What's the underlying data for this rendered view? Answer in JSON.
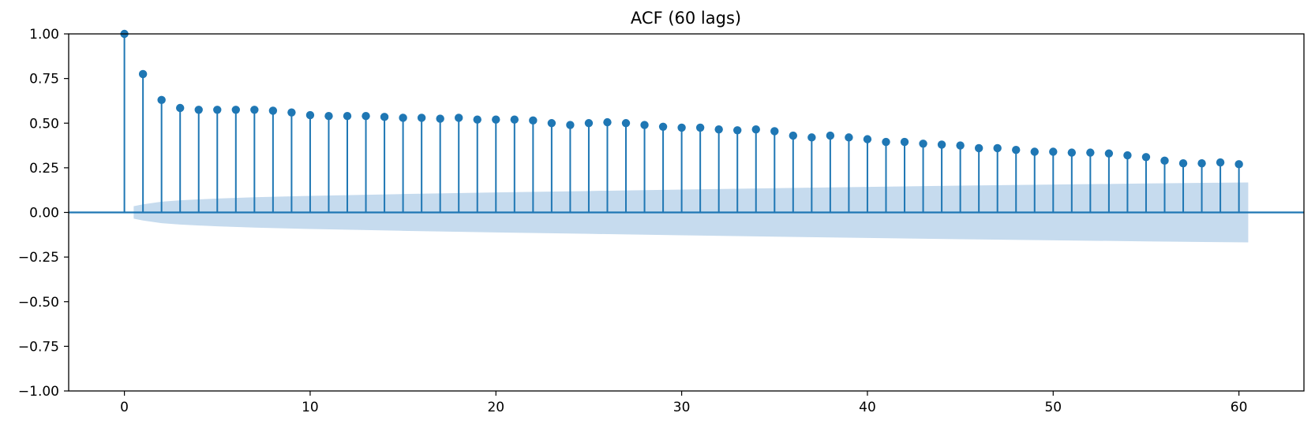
{
  "chart_data": {
    "type": "stem",
    "title": "ACF (60 lags)",
    "xlabel": "",
    "ylabel": "",
    "xlim": [
      -3,
      63.5
    ],
    "ylim": [
      -1.0,
      1.0
    ],
    "x_ticks": [
      0,
      10,
      20,
      30,
      40,
      50,
      60
    ],
    "x_tick_labels": [
      "0",
      "10",
      "20",
      "30",
      "40",
      "50",
      "60"
    ],
    "y_ticks": [
      1.0,
      0.75,
      0.5,
      0.25,
      0.0,
      -0.25,
      -0.5,
      -0.75,
      -1.0
    ],
    "y_tick_labels": [
      "1.00",
      "0.75",
      "0.50",
      "0.25",
      "0.00",
      "−0.25",
      "−0.50",
      "−0.75",
      "−1.00"
    ],
    "grid": false,
    "lags": [
      0,
      1,
      2,
      3,
      4,
      5,
      6,
      7,
      8,
      9,
      10,
      11,
      12,
      13,
      14,
      15,
      16,
      17,
      18,
      19,
      20,
      21,
      22,
      23,
      24,
      25,
      26,
      27,
      28,
      29,
      30,
      31,
      32,
      33,
      34,
      35,
      36,
      37,
      38,
      39,
      40,
      41,
      42,
      43,
      44,
      45,
      46,
      47,
      48,
      49,
      50,
      51,
      52,
      53,
      54,
      55,
      56,
      57,
      58,
      59,
      60
    ],
    "acf": [
      1.0,
      0.775,
      0.63,
      0.585,
      0.575,
      0.575,
      0.575,
      0.575,
      0.57,
      0.56,
      0.545,
      0.54,
      0.54,
      0.54,
      0.535,
      0.53,
      0.53,
      0.525,
      0.53,
      0.52,
      0.52,
      0.52,
      0.515,
      0.5,
      0.49,
      0.5,
      0.505,
      0.5,
      0.49,
      0.48,
      0.475,
      0.475,
      0.465,
      0.46,
      0.465,
      0.455,
      0.43,
      0.42,
      0.43,
      0.42,
      0.41,
      0.395,
      0.395,
      0.385,
      0.38,
      0.375,
      0.36,
      0.36,
      0.35,
      0.34,
      0.34,
      0.335,
      0.335,
      0.33,
      0.32,
      0.31,
      0.29,
      0.275,
      0.275,
      0.28,
      0.27
    ],
    "confidence_band": {
      "x_start": 0.5,
      "x_end": 60.5,
      "x": [
        0.5,
        1,
        2,
        3,
        5,
        7,
        10,
        15,
        20,
        25,
        30,
        35,
        40,
        45,
        50,
        55,
        60.5
      ],
      "upper": [
        0.035,
        0.045,
        0.06,
        0.068,
        0.078,
        0.085,
        0.093,
        0.103,
        0.112,
        0.12,
        0.128,
        0.136,
        0.143,
        0.15,
        0.156,
        0.162,
        0.168
      ],
      "lower": [
        -0.035,
        -0.045,
        -0.06,
        -0.068,
        -0.078,
        -0.085,
        -0.093,
        -0.103,
        -0.112,
        -0.12,
        -0.128,
        -0.136,
        -0.143,
        -0.15,
        -0.156,
        -0.162,
        -0.168
      ]
    },
    "colors": {
      "stem": "#1f77b4",
      "marker": "#1f77b4",
      "zero_line": "#1f77b4",
      "band": "#c6dbee",
      "axes": "#000000"
    }
  }
}
